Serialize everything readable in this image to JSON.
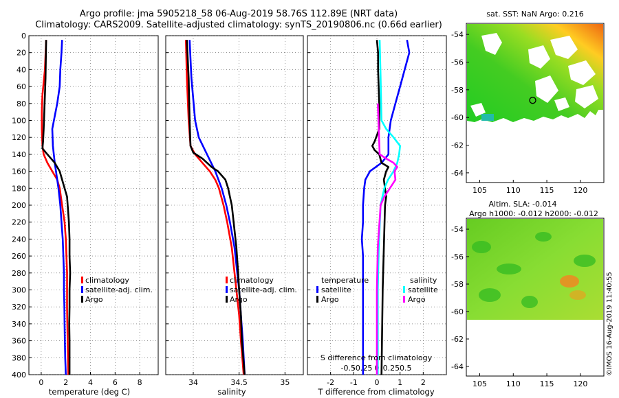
{
  "title_line1": "Argo profile: jma 5905218_58 06-Aug-2019 58.76S 112.89E (NRT data)",
  "title_line2": "Climatology: CARS2009. Satellite-adjusted climatology: synTS_20190806.nc (0.66d earlier)",
  "colors": {
    "climatology": "#ff0000",
    "satellite": "#0000ff",
    "argo": "#000000",
    "satellite_salinity": "#00ffff",
    "argo_salinity": "#ff00ff"
  },
  "chart_data": [
    {
      "type": "line",
      "name": "temperature",
      "xlabel": "temperature (deg C)",
      "xlim": [
        -1,
        9.5
      ],
      "ylim": [
        0,
        400
      ],
      "xticks": [
        0,
        2,
        4,
        6,
        8
      ],
      "yticks": [
        0,
        20,
        40,
        60,
        80,
        100,
        120,
        140,
        160,
        180,
        200,
        220,
        240,
        260,
        280,
        300,
        320,
        340,
        360,
        380,
        400
      ],
      "grid": true,
      "legend": {
        "items": [
          "climatology",
          "satellite-adj. clim.",
          "Argo"
        ],
        "position": "middle-right"
      },
      "series": [
        {
          "name": "climatology",
          "color": "#ff0000",
          "depth": [
            5,
            40,
            70,
            90,
            110,
            130,
            140,
            150,
            160,
            170,
            180,
            200,
            220,
            240,
            260,
            280,
            300,
            320,
            340,
            360,
            380,
            400
          ],
          "values": [
            0.4,
            0.3,
            0.1,
            0.05,
            0.05,
            0.1,
            0.2,
            0.5,
            0.9,
            1.3,
            1.5,
            1.7,
            1.9,
            2.0,
            2.05,
            2.1,
            2.1,
            2.1,
            2.12,
            2.15,
            2.17,
            2.2
          ]
        },
        {
          "name": "satellite-adj. clim.",
          "color": "#0000ff",
          "depth": [
            5,
            20,
            40,
            60,
            80,
            95,
            110,
            130,
            150,
            170,
            180,
            200,
            220,
            240,
            260,
            280,
            300,
            320,
            340,
            360,
            380,
            400
          ],
          "values": [
            1.7,
            1.65,
            1.55,
            1.5,
            1.3,
            1.1,
            0.9,
            0.95,
            1.1,
            1.3,
            1.4,
            1.55,
            1.65,
            1.75,
            1.8,
            1.85,
            1.85,
            1.88,
            1.9,
            1.92,
            1.95,
            2.0
          ]
        },
        {
          "name": "Argo",
          "color": "#000000",
          "depth": [
            5,
            50,
            90,
            110,
            125,
            133,
            140,
            150,
            160,
            170,
            180,
            190,
            200,
            220,
            240,
            260,
            280,
            300,
            320,
            340,
            360,
            380,
            400
          ],
          "values": [
            0.4,
            0.35,
            0.25,
            0.2,
            0.15,
            0.1,
            0.5,
            1.1,
            1.5,
            1.7,
            1.9,
            2.1,
            2.15,
            2.25,
            2.3,
            2.3,
            2.35,
            2.3,
            2.3,
            2.28,
            2.3,
            2.3,
            2.3
          ]
        }
      ]
    },
    {
      "type": "line",
      "name": "salinity",
      "xlabel": "salinity",
      "xlim": [
        33.7,
        35.2
      ],
      "ylim": [
        0,
        400
      ],
      "xticks": [
        34,
        34.5,
        35
      ],
      "xticklabels": [
        "34",
        "34.5",
        "35"
      ],
      "grid": true,
      "legend": {
        "items": [
          "climatology",
          "satellite-adj. clim.",
          "Argo"
        ],
        "position": "middle-right"
      },
      "series": [
        {
          "name": "climatology",
          "color": "#ff0000",
          "depth": [
            5,
            50,
            100,
            130,
            140,
            150,
            160,
            170,
            180,
            200,
            220,
            250,
            280,
            300,
            330,
            360,
            400
          ],
          "values": [
            33.92,
            33.93,
            33.95,
            33.97,
            34.02,
            34.1,
            34.18,
            34.24,
            34.28,
            34.33,
            34.37,
            34.42,
            34.45,
            34.47,
            34.5,
            34.52,
            34.55
          ]
        },
        {
          "name": "satellite-adj. clim.",
          "color": "#0000ff",
          "depth": [
            5,
            50,
            100,
            120,
            140,
            160,
            180,
            200,
            220,
            250,
            280,
            300,
            330,
            360,
            400
          ],
          "values": [
            33.96,
            33.98,
            34.02,
            34.06,
            34.15,
            34.24,
            34.31,
            34.36,
            34.4,
            34.45,
            34.48,
            34.5,
            34.52,
            34.54,
            34.56
          ]
        },
        {
          "name": "Argo",
          "color": "#000000",
          "depth": [
            5,
            50,
            100,
            130,
            138,
            145,
            155,
            160,
            170,
            180,
            190,
            200,
            220,
            250,
            280,
            300,
            330,
            360,
            400
          ],
          "values": [
            33.93,
            33.95,
            33.96,
            33.97,
            34.0,
            34.1,
            34.2,
            34.27,
            34.35,
            34.38,
            34.4,
            34.42,
            34.44,
            34.47,
            34.49,
            34.5,
            34.52,
            34.53,
            34.56
          ]
        }
      ]
    },
    {
      "type": "line",
      "name": "difference",
      "xlabel": "T difference from climatology",
      "top_xlabel": "S difference from climatology",
      "xlim": [
        -3,
        3
      ],
      "ylim": [
        0,
        400
      ],
      "xticks": [
        -2,
        -1,
        0,
        1,
        2
      ],
      "salinity_xticks": [
        -0.5,
        -0.25,
        0,
        0.25,
        0.5
      ],
      "salinity_ticklabels": [
        "-0.5",
        "-0.25",
        "0",
        "0.25",
        "0.5"
      ],
      "grid": true,
      "legend": {
        "temperature_title": "temperature",
        "salinity_title": "salinity",
        "temperature_items": [
          "satellite",
          "Argo"
        ],
        "salinity_items": [
          "satellite",
          "Argo"
        ]
      },
      "series": [
        {
          "name": "temperature satellite",
          "color": "#0000ff",
          "depth": [
            5,
            20,
            40,
            60,
            80,
            100,
            120,
            140,
            150,
            160,
            170,
            180,
            200,
            220,
            240,
            260,
            300,
            350,
            400
          ],
          "values": [
            1.3,
            1.4,
            1.2,
            1.0,
            0.8,
            0.6,
            0.5,
            0.5,
            0.2,
            -0.3,
            -0.5,
            -0.55,
            -0.6,
            -0.6,
            -0.65,
            -0.6,
            -0.6,
            -0.6,
            -0.6
          ]
        },
        {
          "name": "temperature Argo",
          "color": "#000000",
          "depth": [
            5,
            20,
            40,
            80,
            110,
            125,
            130,
            135,
            140,
            150,
            155,
            160,
            170,
            180,
            190,
            200,
            250,
            300,
            400
          ],
          "values": [
            0.0,
            0.05,
            0.05,
            0.1,
            0.1,
            -0.1,
            -0.2,
            -0.1,
            0.1,
            0.2,
            0.5,
            0.4,
            0.3,
            0.35,
            0.4,
            0.35,
            0.3,
            0.25,
            0.2
          ]
        },
        {
          "name": "salinity satellite",
          "color": "#00ffff",
          "depth": [
            5,
            50,
            100,
            110,
            120,
            130,
            140,
            150,
            160,
            170,
            180,
            200,
            250,
            300,
            400
          ],
          "values": [
            0.03,
            0.04,
            0.05,
            0.1,
            0.18,
            0.25,
            0.24,
            0.22,
            0.18,
            0.12,
            0.08,
            0.04,
            0.02,
            0.01,
            0.01
          ]
        },
        {
          "name": "salinity Argo",
          "color": "#ff00ff",
          "depth": [
            80,
            110,
            140,
            145,
            150,
            155,
            160,
            170,
            180,
            190,
            200,
            250,
            300,
            400
          ],
          "values": [
            0.01,
            0.02,
            0.03,
            0.1,
            0.18,
            0.22,
            0.19,
            0.2,
            0.14,
            0.08,
            0.04,
            0.01,
            0.0,
            0.0
          ]
        }
      ]
    },
    {
      "type": "heatmap",
      "name": "sst_map",
      "title": "sat. SST: NaN Argo: 0.216",
      "xlim": [
        103,
        123.5
      ],
      "ylim": [
        -64.7,
        -53.2
      ],
      "xticks": [
        105,
        110,
        115,
        120
      ],
      "yticks": [
        -54,
        -56,
        -58,
        -60,
        -62,
        -64
      ],
      "float_position": [
        112.89,
        -58.76
      ],
      "data_extent_lat": [
        -60,
        -53.2
      ]
    },
    {
      "type": "heatmap",
      "name": "sla_map",
      "title_line1": "Altim. SLA: -0.014",
      "title_line2": "Argo h1000: -0.012 h2000: -0.012",
      "xlim": [
        103,
        123.5
      ],
      "ylim": [
        -64.7,
        -53.2
      ],
      "xticks": [
        105,
        110,
        115,
        120
      ],
      "yticks": [
        -54,
        -56,
        -58,
        -60,
        -62,
        -64
      ],
      "data_extent_lat": [
        -60,
        -53.2
      ]
    }
  ],
  "timestamp": "©IMOS 16-Aug-2019 11:40:55"
}
